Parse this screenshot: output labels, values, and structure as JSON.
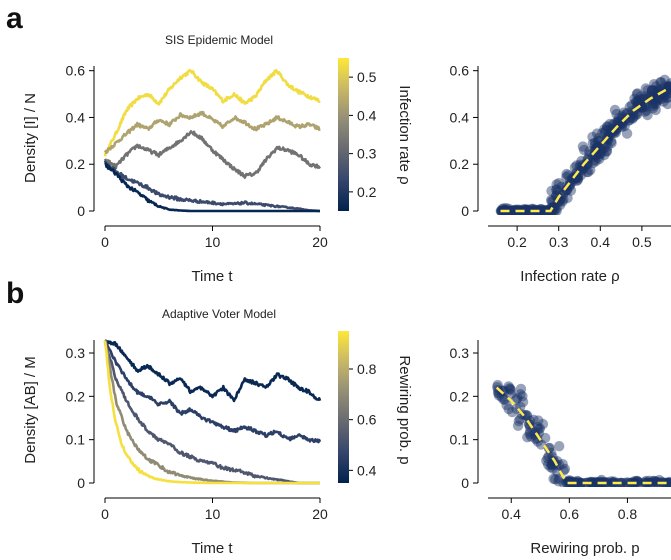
{
  "figure": {
    "panel_a_letter": "a",
    "panel_b_letter": "b"
  },
  "colors": {
    "colormap": [
      "#00224e",
      "#35456c",
      "#666970",
      "#948e77",
      "#c8b866",
      "#fee838"
    ],
    "fit_line": "#ffe94d",
    "scatter_point": "#1a3366"
  },
  "chart_data": [
    {
      "id": "a_left",
      "type": "line",
      "title": "SIS Epidemic Model",
      "xlabel": "Time t",
      "ylabel": "Density [I] / N",
      "xlim": [
        0,
        20
      ],
      "ylim": [
        0,
        0.62
      ],
      "xticks": [
        0,
        10,
        20
      ],
      "yticks": [
        0.0,
        0.2,
        0.4,
        0.6
      ],
      "colorbar": {
        "label": "Infection rate ρ",
        "range": [
          0.15,
          0.55
        ],
        "ticks": [
          0.2,
          0.3,
          0.4,
          0.5
        ]
      },
      "series": [
        {
          "param": 0.53,
          "points": [
            [
              0,
              0.24
            ],
            [
              1,
              0.33
            ],
            [
              2,
              0.43
            ],
            [
              3,
              0.48
            ],
            [
              4,
              0.5
            ],
            [
              5,
              0.46
            ],
            [
              6,
              0.52
            ],
            [
              7,
              0.57
            ],
            [
              8,
              0.6
            ],
            [
              9,
              0.55
            ],
            [
              10,
              0.52
            ],
            [
              11,
              0.47
            ],
            [
              12,
              0.5
            ],
            [
              13,
              0.46
            ],
            [
              14,
              0.49
            ],
            [
              15,
              0.56
            ],
            [
              16,
              0.6
            ],
            [
              17,
              0.54
            ],
            [
              18,
              0.51
            ],
            [
              19,
              0.49
            ],
            [
              20,
              0.47
            ]
          ]
        },
        {
          "param": 0.43,
          "points": [
            [
              0,
              0.25
            ],
            [
              1,
              0.29
            ],
            [
              2,
              0.33
            ],
            [
              3,
              0.37
            ],
            [
              4,
              0.35
            ],
            [
              5,
              0.39
            ],
            [
              6,
              0.37
            ],
            [
              7,
              0.41
            ],
            [
              8,
              0.4
            ],
            [
              9,
              0.42
            ],
            [
              10,
              0.39
            ],
            [
              11,
              0.36
            ],
            [
              12,
              0.4
            ],
            [
              13,
              0.38
            ],
            [
              14,
              0.35
            ],
            [
              15,
              0.37
            ],
            [
              16,
              0.4
            ],
            [
              17,
              0.38
            ],
            [
              18,
              0.36
            ],
            [
              19,
              0.37
            ],
            [
              20,
              0.35
            ]
          ]
        },
        {
          "param": 0.33,
          "points": [
            [
              0,
              0.22
            ],
            [
              1,
              0.19
            ],
            [
              2,
              0.24
            ],
            [
              3,
              0.28
            ],
            [
              4,
              0.26
            ],
            [
              5,
              0.24
            ],
            [
              6,
              0.27
            ],
            [
              7,
              0.3
            ],
            [
              8,
              0.34
            ],
            [
              9,
              0.31
            ],
            [
              10,
              0.26
            ],
            [
              11,
              0.22
            ],
            [
              12,
              0.18
            ],
            [
              13,
              0.15
            ],
            [
              14,
              0.16
            ],
            [
              15,
              0.22
            ],
            [
              16,
              0.27
            ],
            [
              17,
              0.26
            ],
            [
              18,
              0.24
            ],
            [
              19,
              0.2
            ],
            [
              20,
              0.19
            ]
          ]
        },
        {
          "param": 0.24,
          "points": [
            [
              0,
              0.21
            ],
            [
              1,
              0.17
            ],
            [
              2,
              0.14
            ],
            [
              3,
              0.12
            ],
            [
              4,
              0.1
            ],
            [
              5,
              0.07
            ],
            [
              6,
              0.06
            ],
            [
              7,
              0.05
            ],
            [
              8,
              0.045
            ],
            [
              9,
              0.04
            ],
            [
              10,
              0.035
            ],
            [
              11,
              0.03
            ],
            [
              12,
              0.03
            ],
            [
              13,
              0.035
            ],
            [
              14,
              0.03
            ],
            [
              15,
              0.025
            ],
            [
              16,
              0.02
            ],
            [
              17,
              0.015
            ],
            [
              18,
              0.01
            ],
            [
              19,
              0.003
            ],
            [
              20,
              0.0
            ]
          ]
        },
        {
          "param": 0.16,
          "points": [
            [
              0,
              0.2
            ],
            [
              1,
              0.16
            ],
            [
              2,
              0.11
            ],
            [
              3,
              0.08
            ],
            [
              4,
              0.045
            ],
            [
              5,
              0.02
            ],
            [
              6,
              0.006
            ],
            [
              7,
              0.002
            ],
            [
              8,
              0.0
            ],
            [
              9,
              0.0
            ],
            [
              10,
              0.0
            ],
            [
              12,
              0.0
            ],
            [
              14,
              0.0
            ],
            [
              16,
              0.0
            ],
            [
              18,
              0.0
            ],
            [
              20,
              0.0
            ]
          ]
        }
      ]
    },
    {
      "id": "a_right",
      "type": "scatter",
      "title": "",
      "xlabel": "Infection rate ρ",
      "ylabel": "",
      "xlim": [
        0.13,
        0.57
      ],
      "ylim": [
        0,
        0.62
      ],
      "xticks": [
        0.2,
        0.3,
        0.4,
        0.5
      ],
      "yticks": [
        0.0,
        0.2,
        0.4,
        0.6
      ],
      "trend": [
        [
          0.16,
          0.0
        ],
        [
          0.28,
          0.0
        ],
        [
          0.3,
          0.06
        ],
        [
          0.33,
          0.13
        ],
        [
          0.36,
          0.2
        ],
        [
          0.4,
          0.28
        ],
        [
          0.44,
          0.36
        ],
        [
          0.48,
          0.43
        ],
        [
          0.52,
          0.48
        ],
        [
          0.57,
          0.53
        ]
      ]
    },
    {
      "id": "b_left",
      "type": "line",
      "title": "Adaptive Voter Model",
      "xlabel": "Time t",
      "ylabel": "Density [AB] / M",
      "xlim": [
        0,
        20
      ],
      "ylim": [
        0,
        0.33
      ],
      "xticks": [
        0,
        10,
        20
      ],
      "yticks": [
        0.0,
        0.1,
        0.2,
        0.3
      ],
      "colorbar": {
        "label": "Rewiring prob. p",
        "range": [
          0.35,
          0.95
        ],
        "ticks": [
          0.4,
          0.6,
          0.8
        ]
      },
      "series": [
        {
          "param": 0.37,
          "points": [
            [
              0,
              0.33
            ],
            [
              1,
              0.32
            ],
            [
              2,
              0.29
            ],
            [
              3,
              0.26
            ],
            [
              4,
              0.27
            ],
            [
              5,
              0.25
            ],
            [
              6,
              0.23
            ],
            [
              7,
              0.24
            ],
            [
              8,
              0.21
            ],
            [
              9,
              0.22
            ],
            [
              10,
              0.2
            ],
            [
              11,
              0.22
            ],
            [
              12,
              0.19
            ],
            [
              13,
              0.24
            ],
            [
              14,
              0.23
            ],
            [
              15,
              0.22
            ],
            [
              16,
              0.25
            ],
            [
              17,
              0.24
            ],
            [
              18,
              0.22
            ],
            [
              19,
              0.21
            ],
            [
              20,
              0.19
            ]
          ]
        },
        {
          "param": 0.45,
          "points": [
            [
              0,
              0.33
            ],
            [
              1,
              0.28
            ],
            [
              2,
              0.24
            ],
            [
              3,
              0.21
            ],
            [
              4,
              0.2
            ],
            [
              5,
              0.18
            ],
            [
              6,
              0.19
            ],
            [
              7,
              0.16
            ],
            [
              8,
              0.17
            ],
            [
              9,
              0.15
            ],
            [
              10,
              0.14
            ],
            [
              11,
              0.13
            ],
            [
              12,
              0.12
            ],
            [
              13,
              0.13
            ],
            [
              14,
              0.12
            ],
            [
              15,
              0.11
            ],
            [
              16,
              0.12
            ],
            [
              17,
              0.1
            ],
            [
              18,
              0.11
            ],
            [
              19,
              0.1
            ],
            [
              20,
              0.095
            ]
          ]
        },
        {
          "param": 0.53,
          "points": [
            [
              0,
              0.33
            ],
            [
              1,
              0.24
            ],
            [
              2,
              0.19
            ],
            [
              3,
              0.15
            ],
            [
              4,
              0.12
            ],
            [
              5,
              0.1
            ],
            [
              6,
              0.09
            ],
            [
              7,
              0.07
            ],
            [
              8,
              0.06
            ],
            [
              9,
              0.05
            ],
            [
              10,
              0.045
            ],
            [
              11,
              0.035
            ],
            [
              12,
              0.03
            ],
            [
              13,
              0.025
            ],
            [
              14,
              0.015
            ],
            [
              15,
              0.012
            ],
            [
              16,
              0.008
            ],
            [
              17,
              0.004
            ],
            [
              18,
              0.0
            ],
            [
              20,
              0.0
            ]
          ]
        },
        {
          "param": 0.7,
          "points": [
            [
              0,
              0.33
            ],
            [
              1,
              0.19
            ],
            [
              2,
              0.12
            ],
            [
              3,
              0.08
            ],
            [
              4,
              0.055
            ],
            [
              5,
              0.04
            ],
            [
              6,
              0.025
            ],
            [
              7,
              0.018
            ],
            [
              8,
              0.012
            ],
            [
              9,
              0.008
            ],
            [
              10,
              0.005
            ],
            [
              11,
              0.003
            ],
            [
              12,
              0.001
            ],
            [
              14,
              0.0
            ],
            [
              20,
              0.0
            ]
          ]
        },
        {
          "param": 0.93,
          "points": [
            [
              0,
              0.33
            ],
            [
              0.5,
              0.21
            ],
            [
              1,
              0.14
            ],
            [
              1.5,
              0.095
            ],
            [
              2,
              0.065
            ],
            [
              3,
              0.032
            ],
            [
              4,
              0.016
            ],
            [
              5,
              0.008
            ],
            [
              6,
              0.004
            ],
            [
              7,
              0.002
            ],
            [
              8,
              0.001
            ],
            [
              10,
              0.0
            ],
            [
              20,
              0.0
            ]
          ]
        }
      ]
    },
    {
      "id": "b_right",
      "type": "scatter",
      "title": "",
      "xlabel": "Rewiring prob. p",
      "ylabel": "",
      "xlim": [
        0.32,
        0.95
      ],
      "ylim": [
        0,
        0.33
      ],
      "xticks": [
        0.4,
        0.6,
        0.8
      ],
      "yticks": [
        0.0,
        0.1,
        0.2,
        0.3
      ],
      "trend": [
        [
          0.35,
          0.22
        ],
        [
          0.4,
          0.19
        ],
        [
          0.45,
          0.15
        ],
        [
          0.5,
          0.1
        ],
        [
          0.55,
          0.05
        ],
        [
          0.59,
          0.0
        ],
        [
          0.95,
          0.0
        ]
      ]
    }
  ]
}
